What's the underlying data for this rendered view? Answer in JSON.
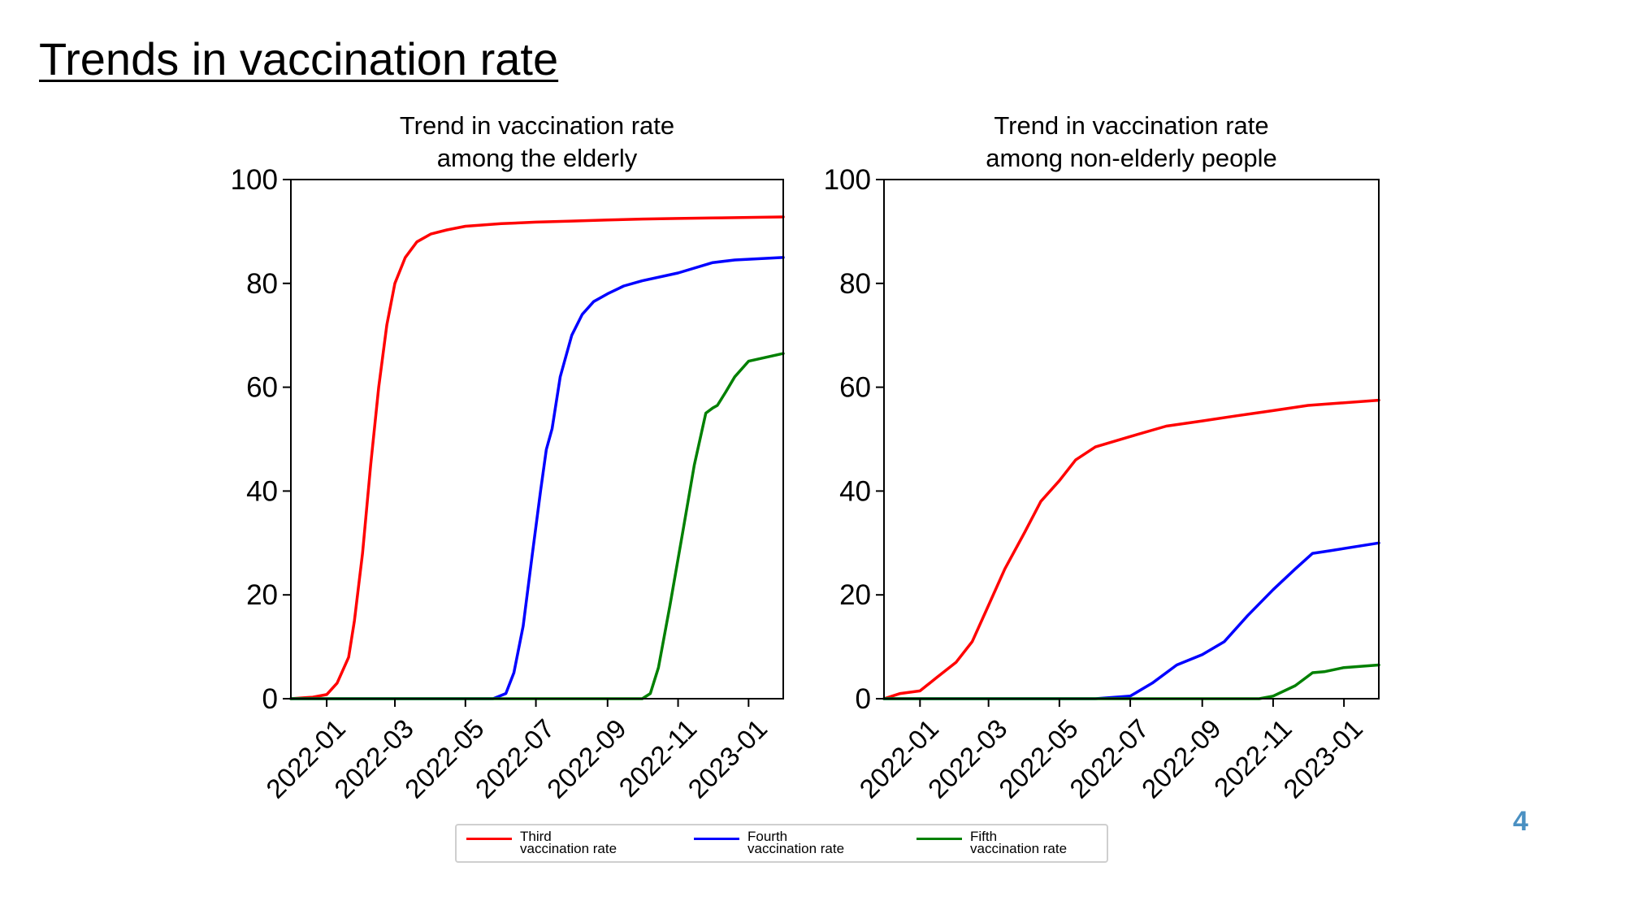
{
  "slide": {
    "title": "Trends in vaccination rate",
    "page_number": "4"
  },
  "legend": {
    "items": [
      {
        "label": "Third\nvaccination rate",
        "color": "#ff0000"
      },
      {
        "label": "Fourth\nvaccination rate",
        "color": "#0000ff"
      },
      {
        "label": "Fifth\nvaccination rate",
        "color": "#008000"
      }
    ]
  },
  "chart_data": [
    {
      "type": "line",
      "title": "Trend in vaccination rate\namong the elderly",
      "xlabel": "",
      "ylabel": "",
      "xlim": [
        "2021-12-01",
        "2023-01-31"
      ],
      "ylim": [
        0,
        100
      ],
      "x_ticks": [
        "2022-01",
        "2022-03",
        "2022-05",
        "2022-07",
        "2022-09",
        "2022-11",
        "2023-01"
      ],
      "y_ticks": [
        0,
        20,
        40,
        60,
        80,
        100
      ],
      "grid": false,
      "series": [
        {
          "name": "Third vaccination rate",
          "color": "#ff0000",
          "points": [
            [
              "2021-12-01",
              0
            ],
            [
              "2021-12-20",
              0.3
            ],
            [
              "2022-01-01",
              0.8
            ],
            [
              "2022-01-10",
              3
            ],
            [
              "2022-01-20",
              8
            ],
            [
              "2022-01-25",
              15
            ],
            [
              "2022-02-01",
              28
            ],
            [
              "2022-02-08",
              45
            ],
            [
              "2022-02-15",
              60
            ],
            [
              "2022-02-22",
              72
            ],
            [
              "2022-03-01",
              80
            ],
            [
              "2022-03-10",
              85
            ],
            [
              "2022-03-20",
              88
            ],
            [
              "2022-04-01",
              89.5
            ],
            [
              "2022-04-15",
              90.3
            ],
            [
              "2022-05-01",
              91
            ],
            [
              "2022-06-01",
              91.5
            ],
            [
              "2022-07-01",
              91.8
            ],
            [
              "2022-08-01",
              92
            ],
            [
              "2022-09-01",
              92.2
            ],
            [
              "2022-10-01",
              92.4
            ],
            [
              "2022-11-01",
              92.5
            ],
            [
              "2022-12-01",
              92.6
            ],
            [
              "2023-01-31",
              92.8
            ]
          ]
        },
        {
          "name": "Fourth vaccination rate",
          "color": "#0000ff",
          "points": [
            [
              "2021-12-01",
              0
            ],
            [
              "2022-05-25",
              0
            ],
            [
              "2022-06-05",
              1
            ],
            [
              "2022-06-12",
              5
            ],
            [
              "2022-06-20",
              14
            ],
            [
              "2022-06-28",
              28
            ],
            [
              "2022-07-05",
              40
            ],
            [
              "2022-07-10",
              48
            ],
            [
              "2022-07-15",
              52
            ],
            [
              "2022-07-22",
              62
            ],
            [
              "2022-08-01",
              70
            ],
            [
              "2022-08-10",
              74
            ],
            [
              "2022-08-20",
              76.5
            ],
            [
              "2022-09-01",
              78
            ],
            [
              "2022-09-15",
              79.5
            ],
            [
              "2022-10-01",
              80.5
            ],
            [
              "2022-11-01",
              82
            ],
            [
              "2022-12-01",
              84
            ],
            [
              "2022-12-20",
              84.5
            ],
            [
              "2023-01-31",
              85
            ]
          ]
        },
        {
          "name": "Fifth vaccination rate",
          "color": "#008000",
          "points": [
            [
              "2021-12-01",
              0
            ],
            [
              "2022-10-01",
              0
            ],
            [
              "2022-10-08",
              1
            ],
            [
              "2022-10-15",
              6
            ],
            [
              "2022-10-25",
              18
            ],
            [
              "2022-11-05",
              32
            ],
            [
              "2022-11-15",
              45
            ],
            [
              "2022-11-25",
              55
            ],
            [
              "2022-12-01",
              56
            ],
            [
              "2022-12-05",
              56.5
            ],
            [
              "2022-12-12",
              59
            ],
            [
              "2022-12-20",
              62
            ],
            [
              "2023-01-01",
              65
            ],
            [
              "2023-01-31",
              66.5
            ]
          ]
        }
      ]
    },
    {
      "type": "line",
      "title": "Trend in vaccination rate\namong non-elderly people",
      "xlabel": "",
      "ylabel": "",
      "xlim": [
        "2021-12-01",
        "2023-01-31"
      ],
      "ylim": [
        0,
        100
      ],
      "x_ticks": [
        "2022-01",
        "2022-03",
        "2022-05",
        "2022-07",
        "2022-09",
        "2022-11",
        "2023-01"
      ],
      "y_ticks": [
        0,
        20,
        40,
        60,
        80,
        100
      ],
      "grid": false,
      "series": [
        {
          "name": "Third vaccination rate",
          "color": "#ff0000",
          "points": [
            [
              "2021-12-01",
              0
            ],
            [
              "2021-12-15",
              1
            ],
            [
              "2022-01-01",
              1.5
            ],
            [
              "2022-01-15",
              4
            ],
            [
              "2022-02-01",
              7
            ],
            [
              "2022-02-15",
              11
            ],
            [
              "2022-03-01",
              18
            ],
            [
              "2022-03-15",
              25
            ],
            [
              "2022-04-01",
              32
            ],
            [
              "2022-04-15",
              38
            ],
            [
              "2022-05-01",
              42
            ],
            [
              "2022-05-15",
              46
            ],
            [
              "2022-06-01",
              48.5
            ],
            [
              "2022-07-01",
              50.5
            ],
            [
              "2022-08-01",
              52.5
            ],
            [
              "2022-09-01",
              53.5
            ],
            [
              "2022-10-01",
              54.5
            ],
            [
              "2022-11-01",
              55.5
            ],
            [
              "2022-12-01",
              56.5
            ],
            [
              "2023-01-31",
              57.5
            ]
          ]
        },
        {
          "name": "Fourth vaccination rate",
          "color": "#0000ff",
          "points": [
            [
              "2021-12-01",
              0
            ],
            [
              "2022-06-01",
              0
            ],
            [
              "2022-07-01",
              0.5
            ],
            [
              "2022-07-20",
              3
            ],
            [
              "2022-08-10",
              6.5
            ],
            [
              "2022-09-01",
              8.5
            ],
            [
              "2022-09-20",
              11
            ],
            [
              "2022-10-10",
              16
            ],
            [
              "2022-11-01",
              21
            ],
            [
              "2022-11-20",
              25
            ],
            [
              "2022-12-05",
              28
            ],
            [
              "2022-12-20",
              28.5
            ],
            [
              "2023-01-31",
              30
            ]
          ]
        },
        {
          "name": "Fifth vaccination rate",
          "color": "#008000",
          "points": [
            [
              "2021-12-01",
              0
            ],
            [
              "2022-10-20",
              0
            ],
            [
              "2022-11-01",
              0.5
            ],
            [
              "2022-11-20",
              2.5
            ],
            [
              "2022-12-05",
              5
            ],
            [
              "2022-12-15",
              5.2
            ],
            [
              "2023-01-01",
              6
            ],
            [
              "2023-01-31",
              6.5
            ]
          ]
        }
      ]
    }
  ]
}
